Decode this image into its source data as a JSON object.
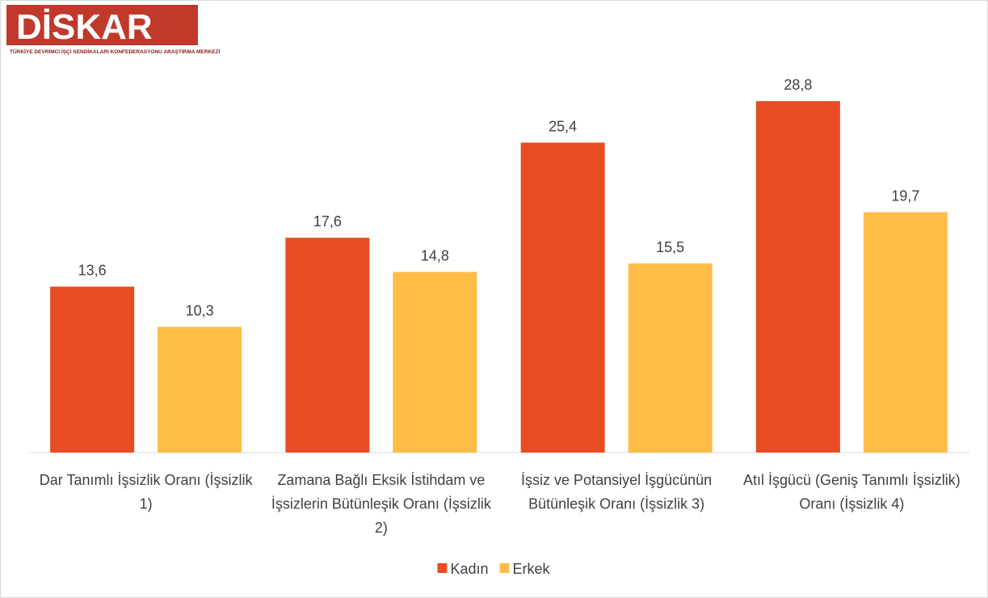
{
  "logo": {
    "name": "DİSKAR",
    "subtitle": "TÜRKİYE DEVRİMCİ İŞÇİ SENDİKALARI KONFEDERASYONU ARAŞTIRMA MERKEZİ"
  },
  "chart_data": {
    "type": "bar",
    "categories": [
      "Dar Tanımlı İşsizlik Oranı (İşsizlik 1)",
      "Zamana Bağlı Eksik İstihdam ve İşsizlerin Bütünleşik Oranı (İşsizlik 2)",
      "İşsiz ve Potansiyel İşgücünün Bütünleşik Oranı (İşsizlik 3)",
      "Atıl İşgücü (Geniş Tanımlı İşsizlik) Oranı (İşsizlik 4)"
    ],
    "series": [
      {
        "name": "Kadın",
        "color": "#e84c22",
        "values": [
          13.6,
          17.6,
          25.4,
          28.8
        ],
        "value_labels": [
          "13,6",
          "17,6",
          "25,4",
          "28,8"
        ]
      },
      {
        "name": "Erkek",
        "color": "#ffbc47",
        "values": [
          10.3,
          14.8,
          15.5,
          19.7
        ],
        "value_labels": [
          "10,3",
          "14,8",
          "15,5",
          "19,7"
        ]
      }
    ],
    "ylim": [
      0,
      30
    ],
    "legend": "bottom"
  }
}
